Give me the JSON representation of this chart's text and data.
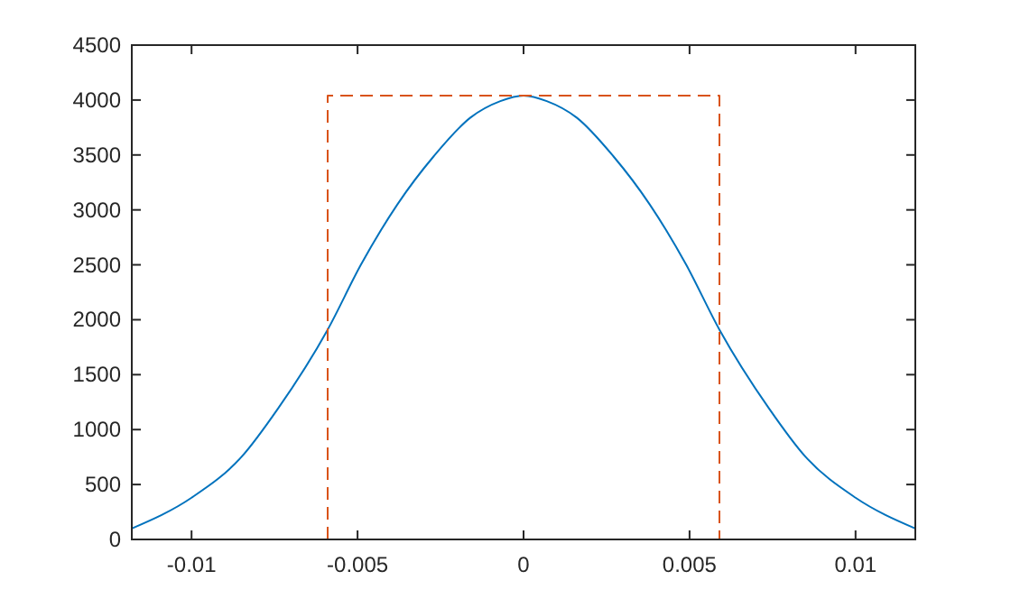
{
  "chart_data": {
    "type": "line",
    "xlim": [
      -0.0118,
      0.0118
    ],
    "xticks": [
      -0.01,
      -0.005,
      0,
      0.005,
      0.01
    ],
    "ylim": [
      0,
      4500
    ],
    "yticks": [
      0,
      500,
      1000,
      1500,
      2000,
      2500,
      3000,
      3500,
      4000,
      4500
    ],
    "grid": false,
    "series": [
      {
        "color": "#0072bd",
        "x": [
          -0.0118,
          -0.01,
          -0.0085,
          -0.0074,
          -0.0059,
          -0.0049,
          -0.0038,
          -0.0027,
          -0.0016,
          -0.0007,
          0,
          0.0007,
          0.0016,
          0.0027,
          0.0038,
          0.0049,
          0.0059,
          0.0074,
          0.0085,
          0.01,
          0.0118
        ],
        "values": [
          100,
          380,
          750,
          1190,
          1910,
          2500,
          3050,
          3490,
          3840,
          3990,
          4040,
          3990,
          3840,
          3490,
          3050,
          2500,
          1910,
          1190,
          750,
          380,
          100
        ],
        "line_style": "solid"
      },
      {
        "color": "#d95319",
        "x": [
          -0.0059,
          -0.0059,
          0.0059,
          0.0059
        ],
        "values": [
          0,
          4040,
          4040,
          0
        ],
        "line_style": "dashed"
      }
    ]
  }
}
